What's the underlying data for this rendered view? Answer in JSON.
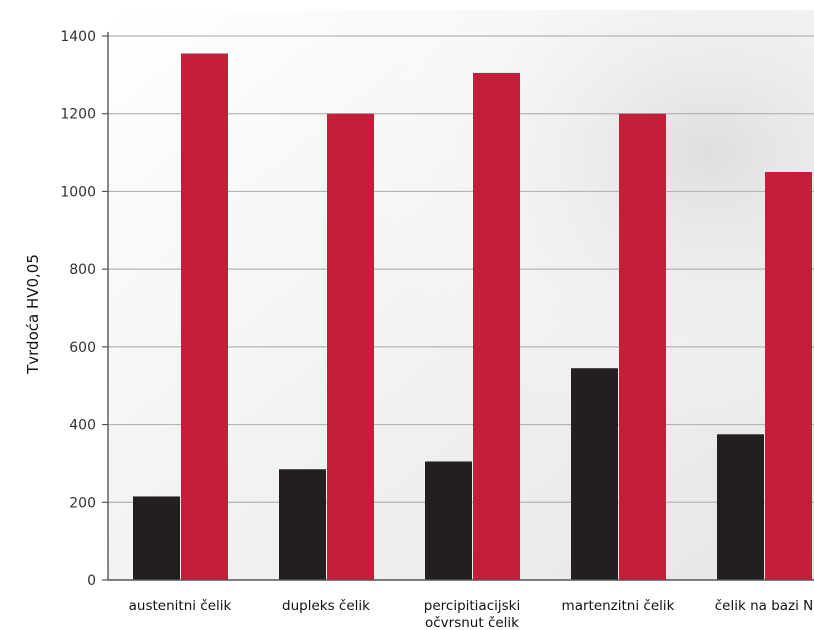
{
  "chart_data": {
    "type": "bar",
    "title": "",
    "xlabel": "",
    "ylabel": "Tvrdoća HV0,05",
    "ylim": [
      0,
      1400
    ],
    "yticks": [
      0,
      200,
      400,
      600,
      800,
      1000,
      1200,
      1400
    ],
    "grid": true,
    "legend": "none",
    "categories": [
      [
        "austenitni čelik"
      ],
      [
        "dupleks čelik"
      ],
      [
        "percipitiacijski",
        "očvrsnut čelik"
      ],
      [
        "martenzitni čelik"
      ],
      [
        "čelik na bazi N"
      ]
    ],
    "series": [
      {
        "color": "#231f20",
        "values": [
          215,
          285,
          305,
          545,
          375
        ]
      },
      {
        "color": "#c41e3a",
        "values": [
          1355,
          1200,
          1305,
          1200,
          1050
        ]
      }
    ],
    "colors": {
      "grid": "#b5b5b5",
      "axis": "#555555",
      "background": "#ffffff",
      "plot_shade": "#ececec"
    }
  }
}
